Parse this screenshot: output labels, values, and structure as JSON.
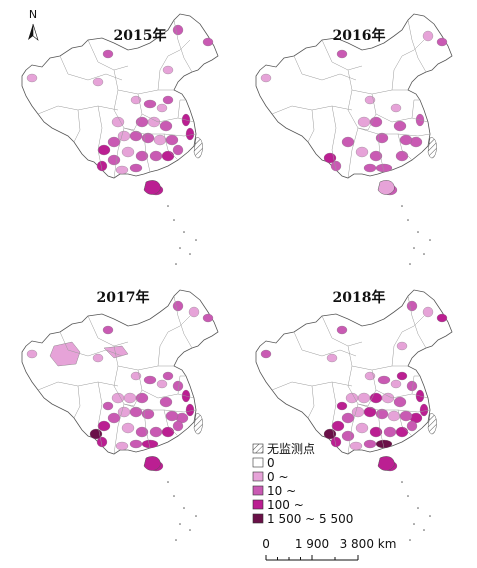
{
  "maps": [
    {
      "id": "2015",
      "title": "2015年",
      "intensity": 0.82
    },
    {
      "id": "2016",
      "title": "2016年",
      "intensity": 0.55
    },
    {
      "id": "2017",
      "title": "2017年",
      "intensity": 0.9
    },
    {
      "id": "2018",
      "title": "2018年",
      "intensity": 1.0
    }
  ],
  "north_arrow": {
    "label": "N"
  },
  "legend": {
    "items": [
      {
        "key": "no-monitoring",
        "label": "无监测点",
        "color": "#ffffff",
        "pattern": "hatch"
      },
      {
        "key": "zero",
        "label": "0",
        "color": "#ffffff"
      },
      {
        "key": "low",
        "label": "0 ~",
        "color": "#e6a3d8"
      },
      {
        "key": "mid",
        "label": "10 ~",
        "color": "#c95ab3"
      },
      {
        "key": "high",
        "label": "100 ~",
        "color": "#bb1f92"
      },
      {
        "key": "very-high",
        "label": "1 500 ~ 5 500",
        "color": "#6a1048"
      }
    ]
  },
  "scale_bar": {
    "labels": [
      "0",
      "1 900",
      "3 800 km"
    ]
  },
  "colors": {
    "outline": "#555555",
    "land": "#ffffff"
  }
}
